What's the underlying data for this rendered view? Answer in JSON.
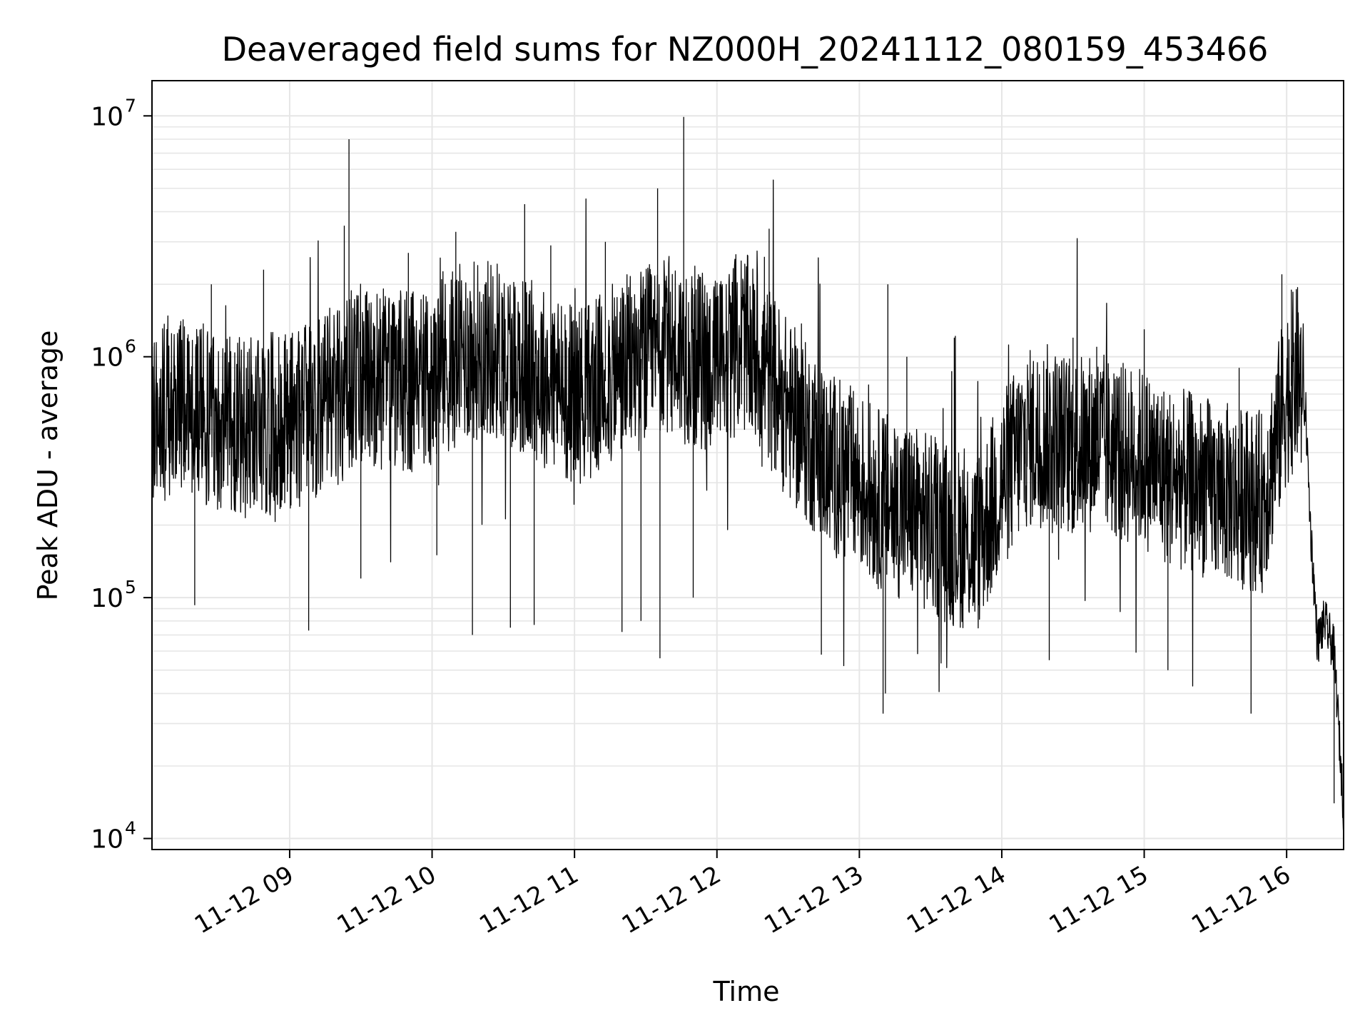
{
  "chart_data": {
    "type": "line",
    "title": "Deaveraged field sums for NZ000H_20241112_080159_453466",
    "xlabel": "Time",
    "ylabel": "Peak ADU - average",
    "yscale": "log",
    "ylim": [
      9000,
      14000000
    ],
    "xlim": [
      "2024-11-12T08:02",
      "2024-11-12T16:24"
    ],
    "grid": "on",
    "line_color": "#000000",
    "grid_color": "#e6e6e6",
    "x_ticks": [
      {
        "value": "2024-11-12T09:00",
        "label": "11-12 09"
      },
      {
        "value": "2024-11-12T10:00",
        "label": "11-12 10"
      },
      {
        "value": "2024-11-12T11:00",
        "label": "11-12 11"
      },
      {
        "value": "2024-11-12T12:00",
        "label": "11-12 12"
      },
      {
        "value": "2024-11-12T13:00",
        "label": "11-12 13"
      },
      {
        "value": "2024-11-12T14:00",
        "label": "11-12 14"
      },
      {
        "value": "2024-11-12T15:00",
        "label": "11-12 15"
      },
      {
        "value": "2024-11-12T16:00",
        "label": "11-12 16"
      }
    ],
    "y_ticks": [
      {
        "value": 10000,
        "base": "10",
        "exp": "4"
      },
      {
        "value": 100000,
        "base": "10",
        "exp": "5"
      },
      {
        "value": 1000000,
        "base": "10",
        "exp": "6"
      },
      {
        "value": 10000000,
        "base": "10",
        "exp": "7"
      }
    ],
    "series": [
      {
        "x": [
          "2024-11-12T08:02",
          "2024-11-12T08:10",
          "2024-11-12T08:20",
          "2024-11-12T08:30",
          "2024-11-12T08:40",
          "2024-11-12T08:50",
          "2024-11-12T09:00",
          "2024-11-12T09:10",
          "2024-11-12T09:20",
          "2024-11-12T09:30",
          "2024-11-12T09:40",
          "2024-11-12T09:50",
          "2024-11-12T10:00",
          "2024-11-12T10:10",
          "2024-11-12T10:20",
          "2024-11-12T10:30",
          "2024-11-12T10:40",
          "2024-11-12T10:50",
          "2024-11-12T11:00",
          "2024-11-12T11:10",
          "2024-11-12T11:20",
          "2024-11-12T11:30",
          "2024-11-12T11:40",
          "2024-11-12T11:50",
          "2024-11-12T12:00",
          "2024-11-12T12:10",
          "2024-11-12T12:20",
          "2024-11-12T12:30",
          "2024-11-12T12:40",
          "2024-11-12T12:50",
          "2024-11-12T13:00",
          "2024-11-12T13:10",
          "2024-11-12T13:20",
          "2024-11-12T13:30",
          "2024-11-12T13:40",
          "2024-11-12T13:50",
          "2024-11-12T14:00",
          "2024-11-12T14:10",
          "2024-11-12T14:20",
          "2024-11-12T14:30",
          "2024-11-12T14:40",
          "2024-11-12T14:50",
          "2024-11-12T15:00",
          "2024-11-12T15:10",
          "2024-11-12T15:20",
          "2024-11-12T15:30",
          "2024-11-12T15:40",
          "2024-11-12T15:50",
          "2024-11-12T16:00",
          "2024-11-12T16:05",
          "2024-11-12T16:08",
          "2024-11-12T16:10",
          "2024-11-12T16:13",
          "2024-11-12T16:16",
          "2024-11-12T16:20",
          "2024-11-12T16:24"
        ],
        "y": [
          500000,
          650000,
          600000,
          550000,
          500000,
          520000,
          550000,
          600000,
          700000,
          850000,
          800000,
          780000,
          800000,
          1000000,
          1100000,
          1050000,
          900000,
          800000,
          700000,
          750000,
          900000,
          1000000,
          1100000,
          1000000,
          900000,
          1200000,
          900000,
          600000,
          450000,
          350000,
          300000,
          250000,
          230000,
          200000,
          180000,
          170000,
          300000,
          450000,
          480000,
          420000,
          450000,
          400000,
          380000,
          320000,
          300000,
          280000,
          260000,
          250000,
          700000,
          850000,
          600000,
          200000,
          65000,
          80000,
          60000,
          13000
        ]
      },
      {
        "x": [
          "2024-11-12T08:20",
          "2024-11-12T08:27",
          "2024-11-12T08:49",
          "2024-11-12T09:08",
          "2024-11-12T09:23",
          "2024-11-12T09:25",
          "2024-11-12T09:30",
          "2024-11-12T09:50",
          "2024-11-12T10:02",
          "2024-11-12T10:10",
          "2024-11-12T10:17",
          "2024-11-12T10:33",
          "2024-11-12T10:39",
          "2024-11-12T10:43",
          "2024-11-12T10:50",
          "2024-11-12T11:13",
          "2024-11-12T11:20",
          "2024-11-12T11:28",
          "2024-11-12T11:35",
          "2024-11-12T11:36",
          "2024-11-12T11:46",
          "2024-11-12T11:50",
          "2024-11-12T12:20",
          "2024-11-12T12:22",
          "2024-11-12T12:44",
          "2024-11-12T13:10",
          "2024-11-12T13:11",
          "2024-11-12T13:12",
          "2024-11-12T13:20",
          "2024-11-12T13:40",
          "2024-11-12T14:20",
          "2024-11-12T14:30",
          "2024-11-12T14:40",
          "2024-11-12T15:00",
          "2024-11-12T15:10",
          "2024-11-12T15:40",
          "2024-11-12T15:45",
          "2024-11-12T15:53",
          "2024-11-12T15:58",
          "2024-11-12T16:02",
          "2024-11-12T16:20"
        ],
        "y": [
          93000,
          2000000,
          2300000,
          73000,
          3500000,
          8000000,
          120000,
          2700000,
          150000,
          3300000,
          70000,
          75000,
          4300000,
          77000,
          2900000,
          3000000,
          72000,
          80000,
          5000000,
          56000,
          9900000,
          100000,
          2600000,
          3400000,
          58000,
          33000,
          40000,
          2000000,
          1000000,
          1200000,
          55000,
          1200000,
          1100000,
          1300000,
          50000,
          900000,
          33000,
          500000,
          2200000,
          1900000,
          14000
        ]
      }
    ]
  }
}
